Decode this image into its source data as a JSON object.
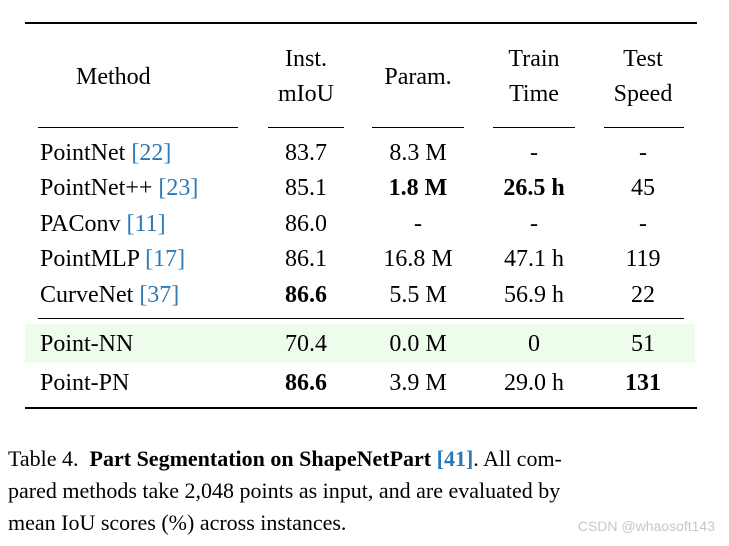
{
  "table": {
    "headers": {
      "method": "Method",
      "inst_line1": "Inst.",
      "inst_line2": "mIoU",
      "param": "Param.",
      "train_line1": "Train",
      "train_line2": "Time",
      "test_line1": "Test",
      "test_line2": "Speed"
    },
    "rows": [
      {
        "name": "PointNet",
        "ref": "[22]",
        "miou": "83.7",
        "param": "8.3 M",
        "train": "-",
        "speed": "-"
      },
      {
        "name": "PointNet++",
        "ref": "[23]",
        "miou": "85.1",
        "param": "1.8 M",
        "train": "26.5 h",
        "speed": "45"
      },
      {
        "name": "PAConv",
        "ref": "[11]",
        "miou": "86.0",
        "param": "-",
        "train": "-",
        "speed": "-"
      },
      {
        "name": "PointMLP",
        "ref": "[17]",
        "miou": "86.1",
        "param": "16.8 M",
        "train": "47.1 h",
        "speed": "119"
      },
      {
        "name": "CurveNet",
        "ref": "[37]",
        "miou": "86.6",
        "param": "5.5 M",
        "train": "56.9 h",
        "speed": "22"
      },
      {
        "name": "Point-NN",
        "miou": "70.4",
        "param": "0.0 M",
        "train": "0",
        "speed": "51"
      },
      {
        "name": "Point-PN",
        "miou": "86.6",
        "param": "3.9 M",
        "train": "29.0 h",
        "speed": "131"
      }
    ],
    "highlight_color": "#eefcec"
  },
  "caption": {
    "label": "Table 4.",
    "title": "Part Segmentation on ShapeNetPart",
    "title_ref": "[41]",
    "line1_tail": ".  All com-",
    "line2": "pared methods take 2,048 points as input, and are evaluated by",
    "line3": "mean IoU scores (%) across instances."
  },
  "watermark": "CSDN @whaosoft143"
}
